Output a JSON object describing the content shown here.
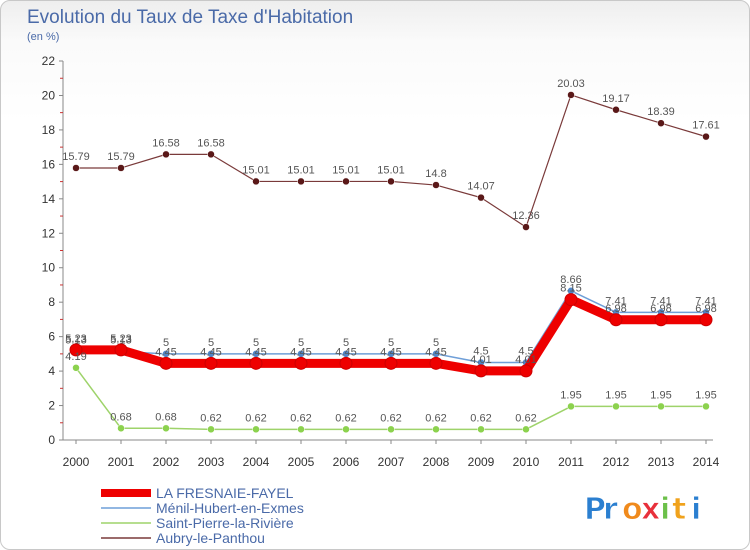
{
  "header": {
    "title": "Evolution du Taux de Taxe d'Habitation",
    "subtitle": "(en %)"
  },
  "logo": {
    "text": "Proxiti"
  },
  "chart_data": {
    "type": "line",
    "title": "Evolution du Taux de Taxe d'Habitation",
    "ylabel": "(en %)",
    "xlabel": "",
    "ylim": [
      0,
      22
    ],
    "yticks": [
      0,
      2,
      4,
      6,
      8,
      10,
      12,
      14,
      16,
      18,
      20,
      22
    ],
    "grid": false,
    "legend_position": "bottom-left",
    "x": [
      "2000",
      "2001",
      "2002",
      "2003",
      "2004",
      "2005",
      "2006",
      "2007",
      "2008",
      "2009",
      "2010",
      "2011",
      "2012",
      "2013",
      "2014"
    ],
    "series": [
      {
        "name": "LA FRESNAIE-FAYEL",
        "color": "#ee0000",
        "values": [
          5.23,
          5.23,
          4.45,
          4.45,
          4.45,
          4.45,
          4.45,
          4.45,
          4.45,
          4.01,
          4.01,
          8.15,
          6.98,
          6.98,
          6.98
        ],
        "labels": [
          "5.23",
          "5.23",
          "4.45",
          "4.45",
          "4.45",
          "4.45",
          "4.45",
          "4.45",
          "4.45",
          "4.01",
          "4.01",
          "8.15",
          "6.98",
          "6.98",
          "6.98"
        ]
      },
      {
        "name": "Ménil-Hubert-en-Exmes",
        "color": "#6f9fd8",
        "values": [
          5.13,
          5.13,
          5,
          5,
          5,
          5,
          5,
          5,
          5,
          4.5,
          4.5,
          8.66,
          7.41,
          7.41,
          7.41
        ],
        "labels": [
          "5.13",
          "5.13",
          "5",
          "5",
          "5",
          "5",
          "5",
          "5",
          "5",
          "4.5",
          "4.5",
          "8.66",
          "7.41",
          "7.41",
          "7.41"
        ]
      },
      {
        "name": "Saint-Pierre-la-Rivière",
        "color": "#9ed36a",
        "values": [
          4.19,
          0.68,
          0.68,
          0.62,
          0.62,
          0.62,
          0.62,
          0.62,
          0.62,
          0.62,
          0.62,
          1.95,
          1.95,
          1.95,
          1.95
        ],
        "labels": [
          "4.19",
          "0.68",
          "0.68",
          "0.62",
          "0.62",
          "0.62",
          "0.62",
          "0.62",
          "0.62",
          "0.62",
          "0.62",
          "1.95",
          "1.95",
          "1.95",
          "1.95"
        ]
      },
      {
        "name": "Aubry-le-Panthou",
        "color": "#7a3a3a",
        "values": [
          15.79,
          15.79,
          16.58,
          16.58,
          15.01,
          15.01,
          15.01,
          15.01,
          14.8,
          14.07,
          12.36,
          20.03,
          19.17,
          18.39,
          17.61
        ],
        "labels": [
          "15.79",
          "15.79",
          "16.58",
          "16.58",
          "15.01",
          "15.01",
          "15.01",
          "15.01",
          "14.8",
          "14.07",
          "12.36",
          "20.03",
          "19.17",
          "18.39",
          "17.61"
        ]
      }
    ]
  }
}
